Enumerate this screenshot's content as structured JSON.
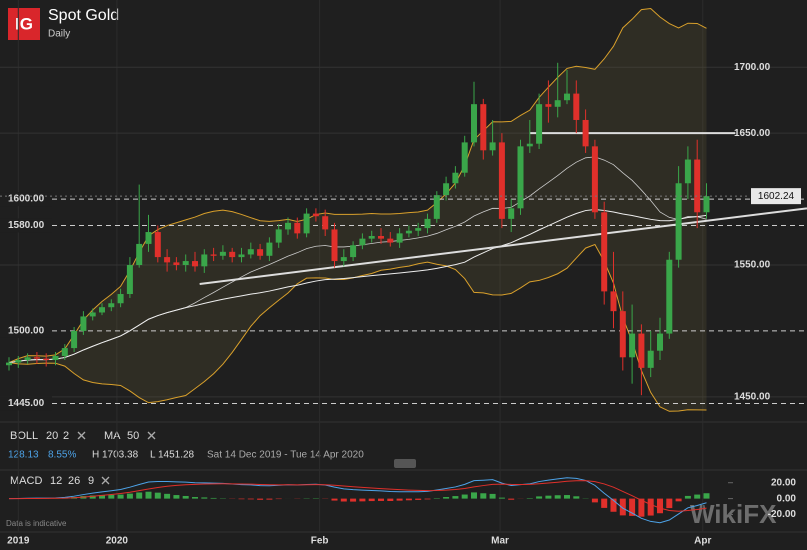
{
  "header": {
    "logo": "IG",
    "title": "Spot Gold",
    "subtitle": "Daily"
  },
  "indicators": {
    "boll": {
      "name": "BOLL",
      "params": [
        20,
        2
      ]
    },
    "ma": {
      "name": "MA",
      "params": [
        50
      ]
    },
    "macd": {
      "name": "MACD",
      "params": [
        12,
        26,
        9
      ]
    }
  },
  "info": {
    "change": "128.13",
    "change_pct": "8.55%",
    "high": "H 1703.38",
    "low": "L 1451.28",
    "range": "Sat 14 Dec 2019 - Tue 14 Apr 2020"
  },
  "footnote": "Data is indicative",
  "watermark": "WikiFX",
  "chart_data": {
    "type": "candlestick",
    "up_color": "#3aa64a",
    "down_color": "#e0302b",
    "open": [
      1474,
      1476,
      1478,
      1480,
      1479,
      1478,
      1481,
      1487,
      1500,
      1511,
      1514,
      1518,
      1521,
      1528,
      1550,
      1566,
      1575,
      1556,
      1552,
      1550,
      1553,
      1549,
      1558,
      1557,
      1560,
      1556,
      1558,
      1562,
      1557,
      1567,
      1577,
      1582,
      1574,
      1589,
      1587,
      1577,
      1553,
      1556,
      1565,
      1570,
      1572,
      1570,
      1567,
      1574,
      1576,
      1578,
      1585,
      1603,
      1612,
      1620,
      1643,
      1672,
      1637,
      1643,
      1585,
      1593,
      1640,
      1642,
      1672,
      1670,
      1675,
      1680,
      1660,
      1640,
      1590,
      1530,
      1515,
      1480,
      1498,
      1472,
      1485,
      1498,
      1554,
      1612,
      1630,
      1590
    ],
    "high": [
      1480,
      1481,
      1483,
      1484,
      1483,
      1484,
      1490,
      1503,
      1515,
      1517,
      1521,
      1524,
      1532,
      1556,
      1611,
      1588,
      1580,
      1562,
      1556,
      1558,
      1560,
      1562,
      1563,
      1565,
      1563,
      1563,
      1567,
      1566,
      1571,
      1581,
      1586,
      1586,
      1593,
      1593,
      1592,
      1582,
      1562,
      1568,
      1574,
      1576,
      1578,
      1575,
      1578,
      1580,
      1582,
      1589,
      1606,
      1617,
      1625,
      1648,
      1689,
      1676,
      1660,
      1650,
      1600,
      1645,
      1660,
      1680,
      1690,
      1703.38,
      1698,
      1690,
      1668,
      1645,
      1598,
      1560,
      1530,
      1520,
      1505,
      1500,
      1510,
      1560,
      1625,
      1640,
      1645,
      1612
    ],
    "low": [
      1470,
      1472,
      1475,
      1475,
      1473,
      1474,
      1478,
      1484,
      1497,
      1508,
      1512,
      1515,
      1518,
      1525,
      1548,
      1560,
      1552,
      1545,
      1546,
      1545,
      1545,
      1544,
      1553,
      1554,
      1552,
      1552,
      1555,
      1554,
      1553,
      1563,
      1573,
      1570,
      1571,
      1583,
      1572,
      1548,
      1549,
      1553,
      1562,
      1567,
      1566,
      1564,
      1563,
      1571,
      1572,
      1574,
      1582,
      1599,
      1608,
      1617,
      1640,
      1630,
      1633,
      1578,
      1575,
      1588,
      1635,
      1638,
      1658,
      1662,
      1672,
      1650,
      1635,
      1585,
      1520,
      1502,
      1470,
      1460,
      1451.28,
      1465,
      1478,
      1494,
      1548,
      1600,
      1578,
      1585
    ],
    "close": [
      1476,
      1478,
      1480,
      1479,
      1478,
      1481,
      1487,
      1500,
      1511,
      1514,
      1518,
      1521,
      1528,
      1550,
      1566,
      1575,
      1556,
      1552,
      1550,
      1553,
      1549,
      1558,
      1557,
      1560,
      1556,
      1558,
      1562,
      1557,
      1567,
      1577,
      1582,
      1574,
      1589,
      1587,
      1577,
      1553,
      1556,
      1565,
      1570,
      1572,
      1570,
      1567,
      1574,
      1576,
      1578,
      1585,
      1603,
      1612,
      1620,
      1643,
      1672,
      1637,
      1643,
      1585,
      1593,
      1640,
      1642,
      1672,
      1670,
      1675,
      1680,
      1660,
      1640,
      1590,
      1530,
      1515,
      1480,
      1498,
      1472,
      1485,
      1498,
      1554,
      1612,
      1630,
      1590,
      1602.24
    ],
    "xticks": [
      {
        "value": 1,
        "label": "2019"
      },
      {
        "value": 11.6,
        "label": "2020"
      },
      {
        "value": 33.4,
        "label": "Feb"
      },
      {
        "value": 52.8,
        "label": "Mar"
      },
      {
        "value": 74.6,
        "label": "Apr"
      }
    ],
    "ylim": [
      1437,
      1751
    ],
    "yticks": [
      {
        "value": 1700,
        "label": "1700.00"
      },
      {
        "value": 1650,
        "label": "1650.00"
      },
      {
        "value": 1550,
        "label": "1550.00"
      },
      {
        "value": 1450,
        "label": "1450.00"
      }
    ],
    "levels": [
      {
        "value": 1600,
        "label": "1600.00"
      },
      {
        "value": 1580,
        "label": "1580.00"
      },
      {
        "value": 1500,
        "label": "1500.00"
      },
      {
        "value": 1445,
        "label": "1445.00"
      }
    ],
    "last_price": {
      "value": 1602.24,
      "label": "1602.24"
    },
    "resistance": {
      "x": [
        56,
        78.1
      ],
      "y": [
        1650,
        1650
      ]
    },
    "trendline": {
      "x": [
        20.5,
        85.8
      ],
      "y": [
        1535.6,
        1593
      ]
    },
    "macd_ylim": [
      -42,
      36
    ],
    "macd_yticks": [
      {
        "value": 20,
        "label": "20.00"
      },
      {
        "value": 0,
        "label": "0.00"
      },
      {
        "value": -20,
        "label": "-20.00"
      }
    ]
  }
}
